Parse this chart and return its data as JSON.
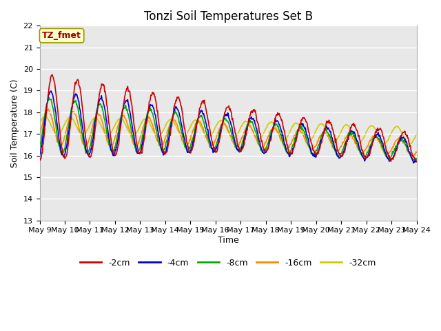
{
  "title": "Tonzi Soil Temperatures Set B",
  "xlabel": "Time",
  "ylabel": "Soil Temperature (C)",
  "ylim": [
    13.0,
    22.0
  ],
  "yticks": [
    13.0,
    14.0,
    15.0,
    16.0,
    17.0,
    18.0,
    19.0,
    20.0,
    21.0,
    22.0
  ],
  "xlim": [
    9,
    24
  ],
  "xtick_positions": [
    9,
    10,
    11,
    12,
    13,
    14,
    15,
    16,
    17,
    18,
    19,
    20,
    21,
    22,
    23,
    24
  ],
  "xtick_labels": [
    "May 9",
    "May 10",
    "May 11",
    "May 12",
    "May 13",
    "May 14",
    "May 15",
    "May 16",
    "May 17",
    "May 18",
    "May 19",
    "May 20",
    "May 21",
    "May 22",
    "May 23",
    "May 24"
  ],
  "colors": {
    "-2cm": "#cc0000",
    "-4cm": "#0000cc",
    "-8cm": "#00aa00",
    "-16cm": "#ff8800",
    "-32cm": "#cccc00"
  },
  "line_width": 1.2,
  "annotation_text": "TZ_fmet",
  "annotation_color": "#990000",
  "annotation_bg": "#ffffcc",
  "annotation_border": "#999900",
  "plot_bg_color": "#e8e8e8",
  "grid_color": "#ffffff",
  "title_fontsize": 12,
  "axis_fontsize": 9,
  "tick_fontsize": 8,
  "annotation_fontsize": 9,
  "legend_fontsize": 9
}
